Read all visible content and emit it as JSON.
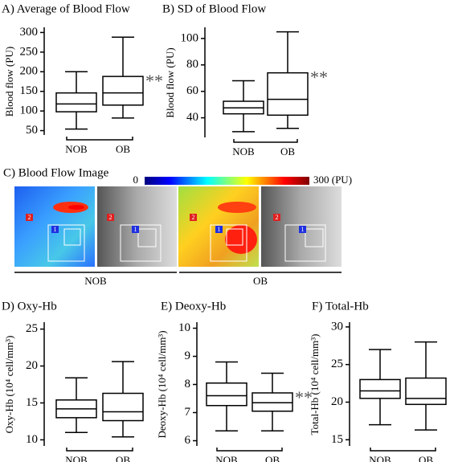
{
  "chart_data": [
    {
      "type": "box",
      "title": "A) Average of Blood Flow",
      "ylabel": "Blood flow (PU)",
      "categories": [
        "NOB",
        "OB"
      ],
      "boxes": [
        {
          "min": 54,
          "q1": 98,
          "median": 118,
          "q3": 146,
          "max": 200
        },
        {
          "min": 82,
          "q1": 115,
          "median": 146,
          "q3": 188,
          "max": 288
        }
      ],
      "ylim": [
        45,
        305
      ],
      "yticks": [
        50,
        100,
        150,
        200,
        250,
        300
      ],
      "annotation": "**",
      "color": "#000000"
    },
    {
      "type": "box",
      "title": "B) SD of Blood Flow",
      "ylabel": "Blood flow (PU)",
      "categories": [
        "NOB",
        "OB"
      ],
      "boxes": [
        {
          "min": 29.5,
          "q1": 43,
          "median": 47.5,
          "q3": 52.5,
          "max": 68
        },
        {
          "min": 32,
          "q1": 42,
          "median": 54,
          "q3": 74,
          "max": 105
        }
      ],
      "ylim": [
        27,
        106
      ],
      "yticks": [
        40,
        60,
        80,
        100
      ],
      "annotation": "**",
      "color": "#000000"
    },
    {
      "type": "box",
      "title": "D) Oxy-Hb",
      "ylabel": "Oxy-Hb (10⁴ cell/mm³)",
      "categories": [
        "NOB",
        "OB"
      ],
      "boxes": [
        {
          "min": 11,
          "q1": 13,
          "median": 14.2,
          "q3": 15.4,
          "max": 18.4
        },
        {
          "min": 10.4,
          "q1": 12.6,
          "median": 13.8,
          "q3": 16.3,
          "max": 20.6
        }
      ],
      "ylim": [
        9.5,
        25.5
      ],
      "yticks": [
        10,
        15,
        20,
        25
      ],
      "color": "#000000"
    },
    {
      "type": "box",
      "title": "E) Deoxy-Hb",
      "ylabel": "Deoxy-Hb (10⁴ cell/mm³)",
      "categories": [
        "NOB",
        "OB"
      ],
      "boxes": [
        {
          "min": 6.35,
          "q1": 7.25,
          "median": 7.6,
          "q3": 8.05,
          "max": 8.8
        },
        {
          "min": 6.35,
          "q1": 7.05,
          "median": 7.35,
          "q3": 7.7,
          "max": 8.4
        }
      ],
      "ylim": [
        5.9,
        10.1
      ],
      "yticks": [
        6,
        7,
        8,
        9,
        10
      ],
      "annotation": "**",
      "color": "#000000"
    },
    {
      "type": "box",
      "title": "F) Total-Hb",
      "ylabel": "Total-Hb (10⁴ cell/mm³)",
      "categories": [
        "NOB",
        "OB"
      ],
      "boxes": [
        {
          "min": 17,
          "q1": 20.5,
          "median": 21.5,
          "q3": 23,
          "max": 27
        },
        {
          "min": 16.3,
          "q1": 19.7,
          "median": 20.5,
          "q3": 23.2,
          "max": 28
        }
      ],
      "ylim": [
        14.5,
        30.2
      ],
      "yticks": [
        15,
        20,
        25,
        30
      ],
      "color": "#000000"
    }
  ],
  "image_panel": {
    "title": "C) Blood Flow Image",
    "colorbar_min": "0",
    "colorbar_max": "300 (PU)",
    "groups": [
      "NOB",
      "OB"
    ],
    "region_labels": [
      "1",
      "2"
    ]
  }
}
